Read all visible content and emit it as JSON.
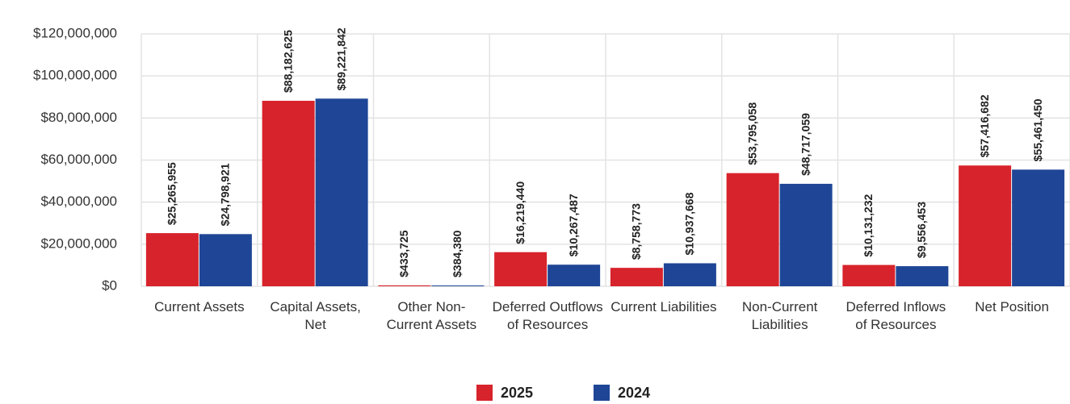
{
  "chart_data": {
    "type": "bar",
    "categories": [
      "Current Assets",
      "Capital Assets, Net",
      "Other Non-Current Assets",
      "Deferred Outflows of Resources",
      "Current Liabilities",
      "Non-Current Liabilities",
      "Deferred Inflows of Resources",
      "Net Position"
    ],
    "series": [
      {
        "name": "2025",
        "color": "#d7232b",
        "values": [
          25265955,
          88182625,
          433725,
          16219440,
          8758773,
          53795058,
          10131232,
          57416682
        ],
        "value_labels": [
          "$25,265,955",
          "$88,182,625",
          "$433,725",
          "$16,219,440",
          "$8,758,773",
          "$53,795,058",
          "$10,131,232",
          "$57,416,682"
        ]
      },
      {
        "name": "2024",
        "color": "#1f4696",
        "values": [
          24798921,
          89221842,
          384380,
          10267487,
          10937668,
          48717059,
          9556453,
          55461450
        ],
        "value_labels": [
          "$24,798,921",
          "$89,221,842",
          "$384,380",
          "$10,267,487",
          "$10,937,668",
          "$48,717,059",
          "$9,556,453",
          "$55,461,450"
        ]
      }
    ],
    "ylim": [
      0,
      120000000
    ],
    "yticks": [
      {
        "value": 0,
        "label": "$0"
      },
      {
        "value": 20000000,
        "label": "$20,000,000"
      },
      {
        "value": 40000000,
        "label": "$40,000,000"
      },
      {
        "value": 60000000,
        "label": "$60,000,000"
      },
      {
        "value": 80000000,
        "label": "$80,000,000"
      },
      {
        "value": 100000000,
        "label": "$100,000,000"
      },
      {
        "value": 120000000,
        "label": "$120,000,000"
      }
    ],
    "grid": true,
    "legend": "bottom"
  }
}
